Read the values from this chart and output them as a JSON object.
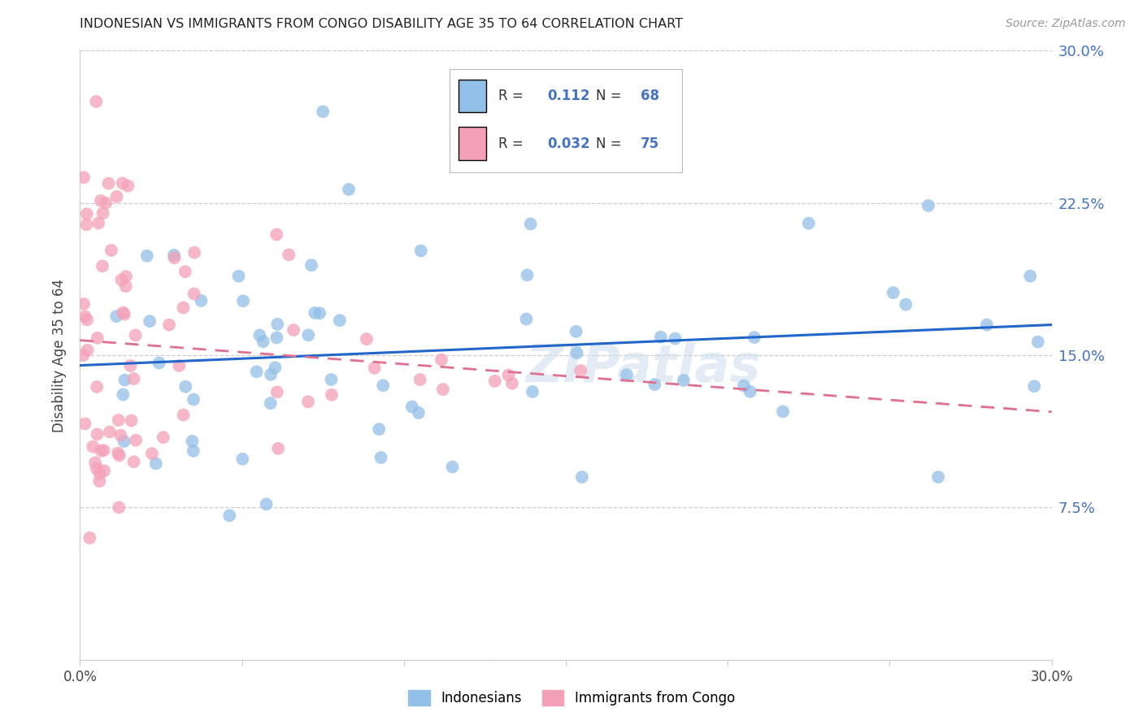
{
  "title": "INDONESIAN VS IMMIGRANTS FROM CONGO DISABILITY AGE 35 TO 64 CORRELATION CHART",
  "source": "Source: ZipAtlas.com",
  "ylabel": "Disability Age 35 to 64",
  "xlim": [
    0.0,
    0.3
  ],
  "ylim": [
    0.0,
    0.3
  ],
  "r_blue": 0.112,
  "n_blue": 68,
  "r_pink": 0.032,
  "n_pink": 75,
  "blue_color": "#92C0E8",
  "pink_color": "#F4A0B8",
  "trendline_blue_color": "#2266CC",
  "trendline_pink_color": "#E07090",
  "legend_label_blue": "Indonesians",
  "legend_label_pink": "Immigrants from Congo",
  "watermark": "ZIPatlas",
  "stat_color": "#4472C4",
  "right_tick_color": "#4472C4"
}
